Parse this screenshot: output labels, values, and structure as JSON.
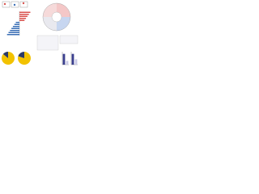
{
  "chart_data": [
    {
      "type": "hbar",
      "values": [
        3,
        2.6,
        2.2,
        1.8,
        1.4,
        -1,
        -1.4,
        -1.8,
        -2.2,
        -2.6,
        -3,
        -3.4
      ],
      "positive_color": "#d9534f",
      "negative_color": "#3b6fb6",
      "xlim": [
        -4,
        4
      ]
    },
    {
      "type": "pie",
      "values": [
        86,
        14
      ],
      "colors": [
        "#f2c200",
        "#2b3a67"
      ]
    },
    {
      "type": "pie",
      "values": [
        80,
        20
      ],
      "colors": [
        "#f2c200",
        "#2b3a67"
      ]
    },
    {
      "type": "bar",
      "categories": [
        null,
        null
      ],
      "values": [
        1,
        0.35
      ],
      "colors": [
        "#3b3f8f",
        "#c9c9e6"
      ],
      "ylim": [
        0,
        1.2
      ]
    },
    {
      "type": "bar",
      "categories": [
        null,
        null
      ],
      "values": [
        1,
        0.5
      ],
      "colors": [
        "#3b3f8f",
        "#c9c9e6"
      ],
      "ylim": [
        0,
        1.2
      ]
    }
  ]
}
